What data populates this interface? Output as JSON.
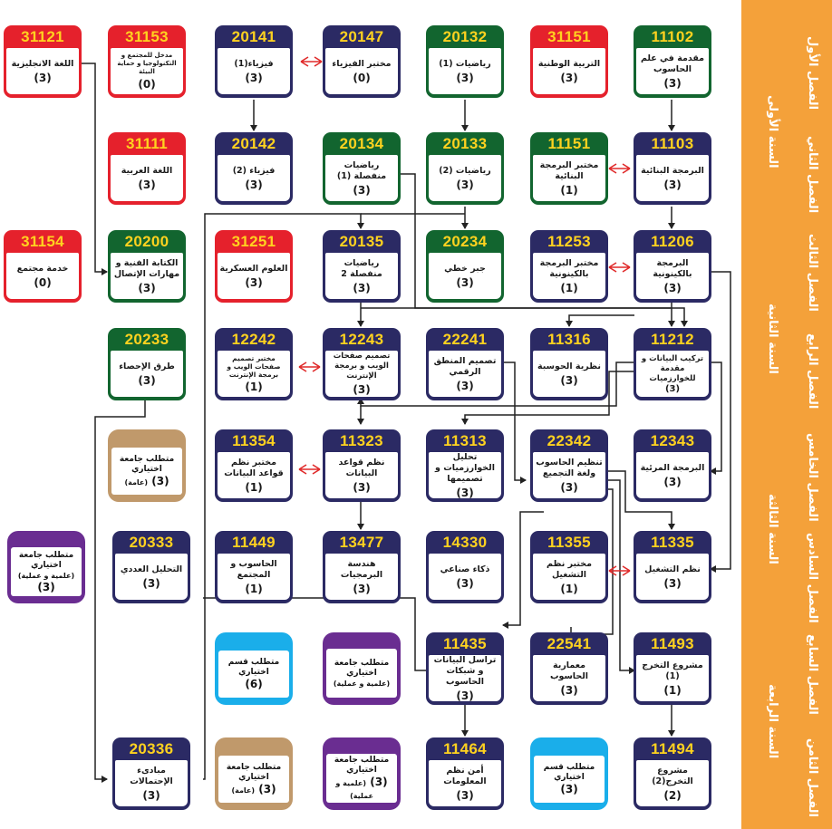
{
  "colors": {
    "navy": "#2b2a64",
    "green": "#12652f",
    "red": "#e5212c",
    "code_text": "#ffd21f",
    "sidebar": "#f4a13a",
    "elective_tan": "#c0996b",
    "elective_purple": "#6a2d91",
    "elective_cyan": "#1aaeea",
    "coreq_arrow": "#e02a2a"
  },
  "semesters": {
    "s1": "الفصل الأول",
    "s2": "الفصل الثاني",
    "s3": "الفصل الثالث",
    "s4": "الفصل الرابع",
    "s5": "الفصل الخامس",
    "s6": "الفصل السادس",
    "s7": "الفصل السابع",
    "s8": "الفصل الثامن"
  },
  "years": {
    "y1": "السنة الأولى",
    "y2": "السنة الثانية",
    "y3": "السنة الثالثة",
    "y4": "السنة الرابعة"
  },
  "courses": {
    "c11102": {
      "code": "11102",
      "name": "مقدمة في علم الحاسوب",
      "credits": "(3)"
    },
    "c31151": {
      "code": "31151",
      "name": "التربية الوطنية",
      "credits": "(3)"
    },
    "c20132": {
      "code": "20132",
      "name": "رياضيات (1)",
      "credits": "(3)"
    },
    "c20147": {
      "code": "20147",
      "name": "مختبر الفيزياء",
      "credits": "(0)"
    },
    "c20141": {
      "code": "20141",
      "name": "فيزياء(1)",
      "credits": "(3)"
    },
    "c31153": {
      "code": "31153",
      "name": "مدخل للمجتمع و التكنولوجيا و حماية البيئة",
      "credits": "(0)"
    },
    "c31121": {
      "code": "31121",
      "name": "اللغة الانجليزية",
      "credits": "(3)"
    },
    "c11103": {
      "code": "11103",
      "name": "البرمجة البنائية",
      "credits": "(3)"
    },
    "c11151": {
      "code": "11151",
      "name": "مختبر البرمجة البنائية",
      "credits": "(1)"
    },
    "c20133": {
      "code": "20133",
      "name": "رياضيات (2)",
      "credits": "(3)"
    },
    "c20134": {
      "code": "20134",
      "name": "رياضيات منفصلة (1)",
      "credits": "(3)"
    },
    "c20142": {
      "code": "20142",
      "name": "فيزياء (2)",
      "credits": "(3)"
    },
    "c31111": {
      "code": "31111",
      "name": "اللغة العربية",
      "credits": "(3)"
    },
    "c11206": {
      "code": "11206",
      "name": "البرمجة بالكينونية",
      "credits": "(3)"
    },
    "c11253": {
      "code": "11253",
      "name": "مختبر البرمجة بالكينونية",
      "credits": "(1)"
    },
    "c20234": {
      "code": "20234",
      "name": "جبر خطي",
      "credits": "(3)"
    },
    "c20135": {
      "code": "20135",
      "name": "رياضيات منفصلة 2",
      "credits": "(3)"
    },
    "c31251": {
      "code": "31251",
      "name": "العلوم العسكرية",
      "credits": "(3)"
    },
    "c20200": {
      "code": "20200",
      "name": "الكتابة الفنية و مهارات الإتصال",
      "credits": "(3)"
    },
    "c31154": {
      "code": "31154",
      "name": "خدمة مجتمع",
      "credits": "(0)"
    },
    "c11212": {
      "code": "11212",
      "name": "تركيب البيانات و مقدمة للخوارزميات",
      "credits": "(3)"
    },
    "c11316": {
      "code": "11316",
      "name": "نظرية الحوسبة",
      "credits": "(3)"
    },
    "c22241": {
      "code": "22241",
      "name": "تصميم المنطق الرقمي",
      "credits": "(3)"
    },
    "c12243": {
      "code": "12243",
      "name": "تصميم صفحات الويب و برمجة الإنترنت",
      "credits": "(3)"
    },
    "c12242": {
      "code": "12242",
      "name": "مختبر تصميم صفحات الويب و برمجة الإنترنت",
      "credits": "(1)"
    },
    "c20233": {
      "code": "20233",
      "name": "طرق الإحصاء",
      "credits": "(3)"
    },
    "c12343": {
      "code": "12343",
      "name": "البرمجة المرئية",
      "credits": "(3)"
    },
    "c22342": {
      "code": "22342",
      "name": "تنظيم الحاسوب ولغة التجميع",
      "credits": "(3)"
    },
    "c11313": {
      "code": "11313",
      "name": "تحليل الخوارزميات و تصميمها",
      "credits": "(3)"
    },
    "c11323": {
      "code": "11323",
      "name": "نظم قواعد البيانات",
      "credits": "(3)"
    },
    "c11354": {
      "code": "11354",
      "name": "مختبر نظم قواعد البيانات",
      "credits": "(1)"
    },
    "c11335": {
      "code": "11335",
      "name": "نظم التشغيل",
      "credits": "(3)"
    },
    "c11355": {
      "code": "11355",
      "name": "مختبر نظم التشغيل",
      "credits": "(1)"
    },
    "c14330": {
      "code": "14330",
      "name": "ذكاء صناعي",
      "credits": "(3)"
    },
    "c13477": {
      "code": "13477",
      "name": "هندسة البرمجيات",
      "credits": "(3)"
    },
    "c11449": {
      "code": "11449",
      "name": "الحاسوب و المجتمع",
      "credits": "(1)"
    },
    "c20333": {
      "code": "20333",
      "name": "التحليل العددي",
      "credits": "(3)"
    },
    "c11493": {
      "code": "11493",
      "name": "مشروع التخرج (1)",
      "credits": "(1)"
    },
    "c22541": {
      "code": "22541",
      "name": "معمارية الحاسوب",
      "credits": "(3)"
    },
    "c11435": {
      "code": "11435",
      "name": "تراسل البيانات و شبكات الحاسوب",
      "credits": "(3)"
    },
    "c11494": {
      "code": "11494",
      "name": "مشروع التخرج(2)",
      "credits": "(2)"
    },
    "c11464": {
      "code": "11464",
      "name": "أمن نظم المعلومات",
      "credits": "(3)"
    },
    "c20336": {
      "code": "20336",
      "name": "مبادىء الإحتمالات",
      "credits": "(3)"
    }
  },
  "electives": {
    "tan5": {
      "name": "متطلب جامعة اختياري",
      "sub": "(عامة)",
      "credits": "(3)"
    },
    "purple6": {
      "name": "متطلب جامعة اختياري",
      "sub": "(علمية و عملية)",
      "credits": "(3)"
    },
    "purple7": {
      "name": "متطلب جامعة اختياري",
      "sub": "(علمية و عملية)",
      "credits": ""
    },
    "cyan7": {
      "name": "متطلب قسم اختياري",
      "credits": "(6)"
    },
    "tan8": {
      "name": "متطلب جامعة اختياري",
      "sub": "(عامة)",
      "credits": "(3)"
    },
    "purple8": {
      "name": "متطلب جامعة اختياري",
      "sub": "(علمية و عملية)",
      "credits": "(3)"
    },
    "cyan8": {
      "name": "متطلب قسم اختياري",
      "credits": "(3)"
    }
  }
}
